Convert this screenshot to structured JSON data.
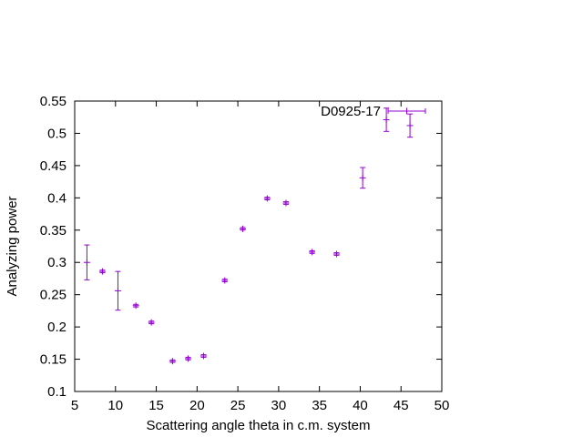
{
  "chart_data": {
    "type": "scatter",
    "title": "",
    "xlabel": "Scattering angle theta in c.m. system",
    "ylabel": "Analyzing power",
    "xlim": [
      5,
      50
    ],
    "ylim": [
      0.1,
      0.55
    ],
    "xticks": [
      "5",
      "10",
      "15",
      "20",
      "25",
      "30",
      "35",
      "40",
      "45",
      "50"
    ],
    "yticks": [
      "0.1",
      "0.15",
      "0.2",
      "0.25",
      "0.3",
      "0.35",
      "0.4",
      "0.45",
      "0.5",
      "0.55"
    ],
    "legend_position": "top-right",
    "grid": false,
    "series": [
      {
        "name": "D0925-17",
        "color": "#9400d3",
        "points": [
          {
            "x": 6.5,
            "y": 0.3,
            "yerr": 0.027
          },
          {
            "x": 8.4,
            "y": 0.286,
            "yerr": 0.002
          },
          {
            "x": 10.3,
            "y": 0.256,
            "yerr": 0.03
          },
          {
            "x": 12.5,
            "y": 0.233,
            "yerr": 0.002
          },
          {
            "x": 14.4,
            "y": 0.207,
            "yerr": 0.002
          },
          {
            "x": 17.0,
            "y": 0.147,
            "yerr": 0.002
          },
          {
            "x": 18.9,
            "y": 0.151,
            "yerr": 0.002
          },
          {
            "x": 20.8,
            "y": 0.155,
            "yerr": 0.002
          },
          {
            "x": 23.4,
            "y": 0.272,
            "yerr": 0.002
          },
          {
            "x": 25.6,
            "y": 0.352,
            "yerr": 0.002
          },
          {
            "x": 28.6,
            "y": 0.399,
            "yerr": 0.002
          },
          {
            "x": 30.9,
            "y": 0.392,
            "yerr": 0.002
          },
          {
            "x": 34.1,
            "y": 0.316,
            "yerr": 0.002
          },
          {
            "x": 37.1,
            "y": 0.313,
            "yerr": 0.002
          },
          {
            "x": 40.3,
            "y": 0.431,
            "yerr": 0.016
          },
          {
            "x": 43.2,
            "y": 0.521,
            "yerr": 0.018
          },
          {
            "x": 46.1,
            "y": 0.512,
            "yerr": 0.018
          }
        ]
      }
    ]
  }
}
